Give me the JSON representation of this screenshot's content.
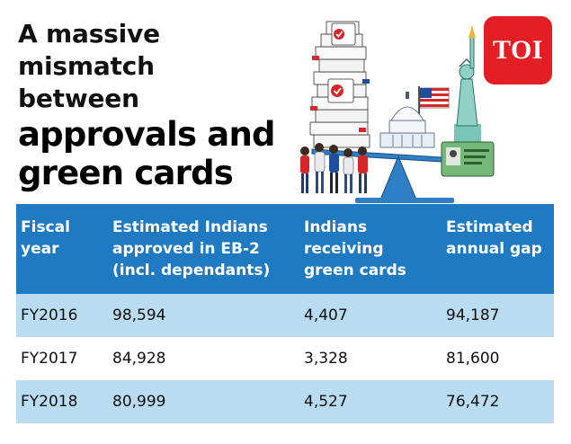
{
  "headline": {
    "line1": "A massive",
    "line2": "mismatch",
    "line3": "between",
    "line4": "approvals and",
    "line5": "green cards"
  },
  "brand": {
    "logo_text": "TOI",
    "color": "#e31e24"
  },
  "illustration": {
    "icons": [
      "paper-stack-icon",
      "checkmark-icon",
      "capitol-icon",
      "us-flag-icon",
      "statue-of-liberty-icon",
      "green-card-icon",
      "seesaw-icon",
      "people-group-icon"
    ]
  },
  "table": {
    "header_color": "#1f7ac1",
    "stripe_color": "#b9dcf1",
    "columns": [
      "Fiscal year",
      "Estimated Indians approved in EB-2 (incl. dependants)",
      "Indians receiving green cards",
      "Estimated annual gap"
    ],
    "rows": [
      [
        "FY2016",
        "98,594",
        "4,407",
        "94,187"
      ],
      [
        "FY2017",
        "84,928",
        "3,328",
        "81,600"
      ],
      [
        "FY2018",
        "80,999",
        "4,527",
        "76,472"
      ]
    ]
  }
}
